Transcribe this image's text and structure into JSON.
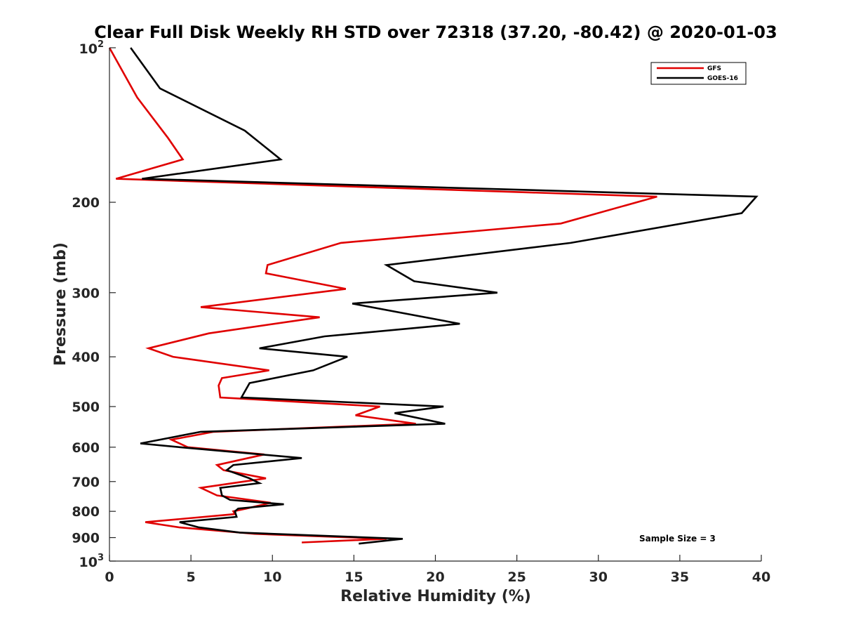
{
  "chart_data": {
    "type": "line",
    "title": "Clear Full Disk Weekly RH STD over 72318 (37.20, -80.42) @ 2020-01-03",
    "xlabel": "Relative Humidity (%)",
    "ylabel": "Pressure (mb)",
    "xlim": [
      0,
      40
    ],
    "ylim": [
      100,
      1000
    ],
    "y_scale": "log",
    "y_reversed": true,
    "x_ticks": [
      "0",
      "5",
      "10",
      "15",
      "20",
      "25",
      "30",
      "35",
      "40"
    ],
    "y_ticks": [
      {
        "value": 100,
        "base": "10",
        "exp": "2"
      },
      {
        "value": 200,
        "label": "200"
      },
      {
        "value": 300,
        "label": "300"
      },
      {
        "value": 400,
        "label": "400"
      },
      {
        "value": 500,
        "label": "500"
      },
      {
        "value": 600,
        "label": "600"
      },
      {
        "value": 700,
        "label": "700"
      },
      {
        "value": 800,
        "label": "800"
      },
      {
        "value": 900,
        "label": "900"
      },
      {
        "value": 1000,
        "base": "10",
        "exp": "3"
      }
    ],
    "grid": false,
    "legend_position": "top-right",
    "annotation": "Sample Size = 3",
    "series": [
      {
        "name": "GFS",
        "color": "#e00000",
        "points": [
          [
            0.0,
            100
          ],
          [
            1.7,
            125
          ],
          [
            3.6,
            150
          ],
          [
            4.5,
            165
          ],
          [
            0.4,
            180
          ],
          [
            33.6,
            195
          ],
          [
            27.7,
            220
          ],
          [
            14.2,
            240
          ],
          [
            9.7,
            265
          ],
          [
            9.6,
            275
          ],
          [
            14.5,
            295
          ],
          [
            5.6,
            320
          ],
          [
            12.9,
            335
          ],
          [
            6.1,
            360
          ],
          [
            2.4,
            385
          ],
          [
            3.9,
            400
          ],
          [
            9.8,
            425
          ],
          [
            6.9,
            440
          ],
          [
            6.7,
            455
          ],
          [
            6.8,
            480
          ],
          [
            16.6,
            500
          ],
          [
            15.1,
            520
          ],
          [
            18.8,
            540
          ],
          [
            6.4,
            560
          ],
          [
            3.8,
            580
          ],
          [
            4.8,
            600
          ],
          [
            9.5,
            620
          ],
          [
            6.6,
            650
          ],
          [
            7.0,
            665
          ],
          [
            9.6,
            690
          ],
          [
            5.6,
            720
          ],
          [
            6.6,
            745
          ],
          [
            9.9,
            770
          ],
          [
            8.4,
            790
          ],
          [
            7.6,
            800
          ],
          [
            7.7,
            810
          ],
          [
            2.2,
            840
          ],
          [
            4.3,
            860
          ],
          [
            8.9,
            885
          ],
          [
            17.0,
            905
          ],
          [
            11.8,
            920
          ]
        ]
      },
      {
        "name": "GOES-16",
        "color": "#000000",
        "points": [
          [
            1.3,
            100
          ],
          [
            3.1,
            120
          ],
          [
            8.3,
            145
          ],
          [
            10.5,
            165
          ],
          [
            2.0,
            180
          ],
          [
            39.7,
            195
          ],
          [
            38.8,
            210
          ],
          [
            28.3,
            240
          ],
          [
            17.0,
            265
          ],
          [
            18.7,
            285
          ],
          [
            23.8,
            300
          ],
          [
            14.9,
            315
          ],
          [
            21.5,
            345
          ],
          [
            13.2,
            365
          ],
          [
            9.2,
            385
          ],
          [
            14.6,
            400
          ],
          [
            12.5,
            425
          ],
          [
            8.6,
            450
          ],
          [
            8.1,
            480
          ],
          [
            20.5,
            500
          ],
          [
            17.5,
            515
          ],
          [
            20.6,
            540
          ],
          [
            5.6,
            560
          ],
          [
            1.9,
            590
          ],
          [
            4.3,
            600
          ],
          [
            11.8,
            630
          ],
          [
            7.6,
            650
          ],
          [
            7.2,
            665
          ],
          [
            8.6,
            690
          ],
          [
            9.2,
            705
          ],
          [
            6.8,
            720
          ],
          [
            6.9,
            745
          ],
          [
            7.4,
            760
          ],
          [
            10.7,
            775
          ],
          [
            7.9,
            790
          ],
          [
            7.7,
            800
          ],
          [
            7.8,
            820
          ],
          [
            4.3,
            840
          ],
          [
            5.5,
            860
          ],
          [
            8.0,
            880
          ],
          [
            18.0,
            905
          ],
          [
            15.3,
            925
          ]
        ]
      }
    ]
  }
}
